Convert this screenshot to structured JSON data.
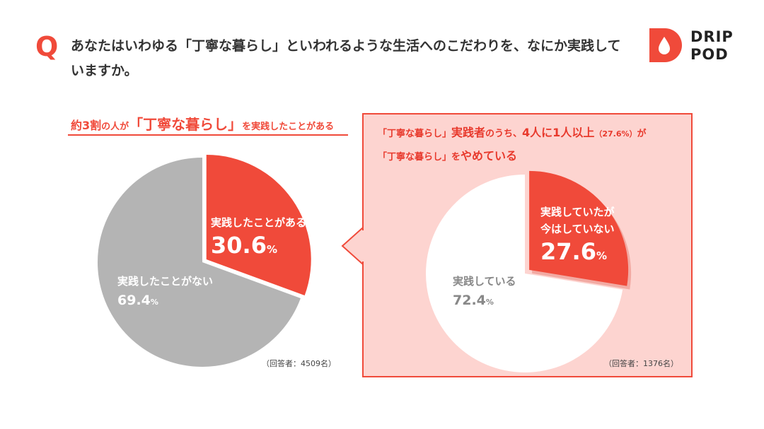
{
  "question": {
    "mark": "Q",
    "text": "あなたはいわゆる「丁寧な暮らし」といわれるような生活へのこだわりを、なにか実践していますか。"
  },
  "logo": {
    "line1": "DRIP",
    "line2": "POD",
    "icon": "drop-icon",
    "brand_color": "#f04a3a"
  },
  "left": {
    "headline": {
      "p1": "約3割",
      "p2": "の人が",
      "p3": "「丁寧な暮らし」",
      "p4": "を実践したことがある"
    },
    "respondents": "（回答者：4509名）"
  },
  "right": {
    "headline": {
      "p1": "「丁寧な暮らし」",
      "p2": "実践者",
      "p3": "のうち、",
      "p4": "4人に1人以上",
      "p5": "（27.6%）",
      "p6": "が",
      "p7": "「丁寧な暮らし」",
      "p8": "を",
      "p9": "やめている"
    },
    "respondents": "（回答者：1376名）"
  },
  "colors": {
    "accent": "#f04a3a",
    "grey_slice": "#b4b4b4",
    "panel_bg": "#fdd4d0",
    "white_slice": "#ffffff"
  },
  "chart_data": [
    {
      "type": "pie",
      "respondents": 4509,
      "slices": [
        {
          "label": "実践したことがある",
          "value": 30.6,
          "value_text": "30.6",
          "unit": "%",
          "color": "#f04a3a",
          "exploded": true
        },
        {
          "label": "実践したことがない",
          "value": 69.4,
          "value_text": "69.4",
          "unit": "%",
          "color": "#b4b4b4",
          "exploded": false
        }
      ]
    },
    {
      "type": "pie",
      "respondents": 1376,
      "slices": [
        {
          "label_lines": [
            "実践していたが",
            "今はしていない"
          ],
          "value": 27.6,
          "value_text": "27.6",
          "unit": "%",
          "color": "#f04a3a",
          "exploded": true
        },
        {
          "label": "実践している",
          "value": 72.4,
          "value_text": "72.4",
          "unit": "%",
          "color": "#ffffff",
          "exploded": false
        }
      ]
    }
  ]
}
